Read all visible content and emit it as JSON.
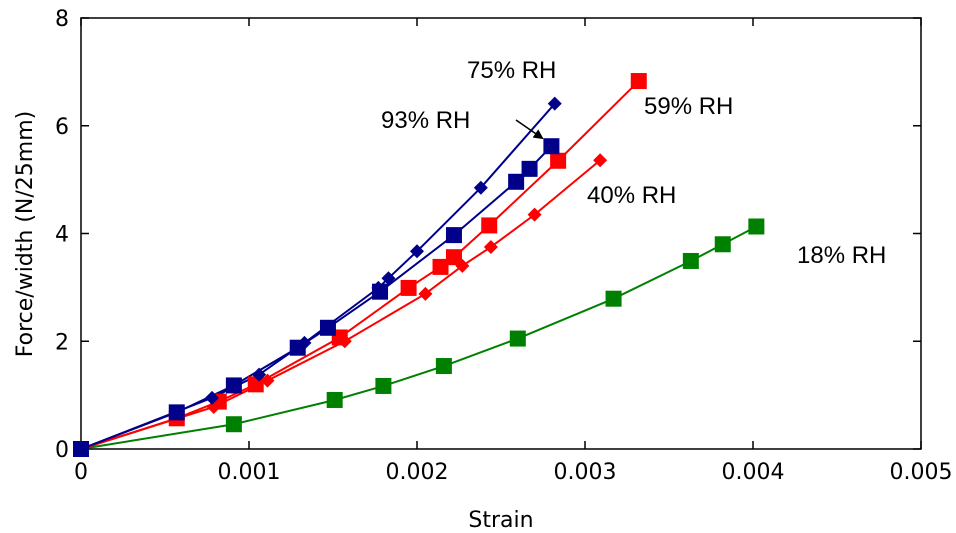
{
  "chart_data": {
    "type": "line",
    "title": "",
    "xlabel": "Strain",
    "ylabel": "Force/width (N/25mm)",
    "xlim": [
      0,
      0.005
    ],
    "ylim": [
      0,
      8
    ],
    "x_ticks": [
      "0",
      "0.001",
      "0.002",
      "0.003",
      "0.004",
      "0.005"
    ],
    "y_ticks": [
      "0",
      "2",
      "4",
      "6",
      "8"
    ],
    "grid": false,
    "series": [
      {
        "name": "93% RH",
        "color": "#00008B",
        "marker": "square",
        "points": [
          [
            0,
            0
          ],
          [
            0.00057,
            0.68
          ],
          [
            0.00091,
            1.18
          ],
          [
            0.00129,
            1.88
          ],
          [
            0.00147,
            2.25
          ],
          [
            0.00178,
            2.92
          ],
          [
            0.00222,
            3.97
          ],
          [
            0.00259,
            4.96
          ],
          [
            0.00267,
            5.2
          ],
          [
            0.0028,
            5.62
          ]
        ]
      },
      {
        "name": "75% RH",
        "color": "#00008B",
        "marker": "diamond",
        "points": [
          [
            0,
            0
          ],
          [
            0.00078,
            0.95
          ],
          [
            0.00106,
            1.38
          ],
          [
            0.00133,
            1.97
          ],
          [
            0.00177,
            2.99
          ],
          [
            0.00183,
            3.17
          ],
          [
            0.002,
            3.67
          ],
          [
            0.00238,
            4.85
          ],
          [
            0.00282,
            6.41
          ]
        ]
      },
      {
        "name": "59% RH",
        "color": "#FF0000",
        "marker": "square",
        "points": [
          [
            0,
            0
          ],
          [
            0.00057,
            0.57
          ],
          [
            0.00082,
            0.88
          ],
          [
            0.00104,
            1.2
          ],
          [
            0.00154,
            2.07
          ],
          [
            0.00195,
            2.99
          ],
          [
            0.00214,
            3.38
          ],
          [
            0.00222,
            3.56
          ],
          [
            0.00243,
            4.15
          ],
          [
            0.00284,
            5.35
          ],
          [
            0.00332,
            6.83
          ]
        ]
      },
      {
        "name": "40% RH",
        "color": "#FF0000",
        "marker": "diamond",
        "points": [
          [
            0,
            0
          ],
          [
            0.00079,
            0.78
          ],
          [
            0.00111,
            1.27
          ],
          [
            0.00157,
            2.0
          ],
          [
            0.00205,
            2.88
          ],
          [
            0.00227,
            3.4
          ],
          [
            0.00244,
            3.75
          ],
          [
            0.0027,
            4.35
          ],
          [
            0.00309,
            5.36
          ]
        ]
      },
      {
        "name": "18% RH",
        "color": "#008000",
        "marker": "square",
        "points": [
          [
            0,
            0
          ],
          [
            0.00091,
            0.46
          ],
          [
            0.00151,
            0.91
          ],
          [
            0.0018,
            1.17
          ],
          [
            0.00216,
            1.54
          ],
          [
            0.0026,
            2.05
          ],
          [
            0.00317,
            2.79
          ],
          [
            0.00363,
            3.49
          ],
          [
            0.00382,
            3.8
          ],
          [
            0.00402,
            4.13
          ]
        ]
      }
    ],
    "annotations": [
      {
        "text": "75% RH",
        "series": 1
      },
      {
        "text": "93% RH",
        "series": 0
      },
      {
        "text": "59% RH",
        "series": 2
      },
      {
        "text": "40% RH",
        "series": 3
      },
      {
        "text": "18% RH",
        "series": 4
      }
    ]
  }
}
